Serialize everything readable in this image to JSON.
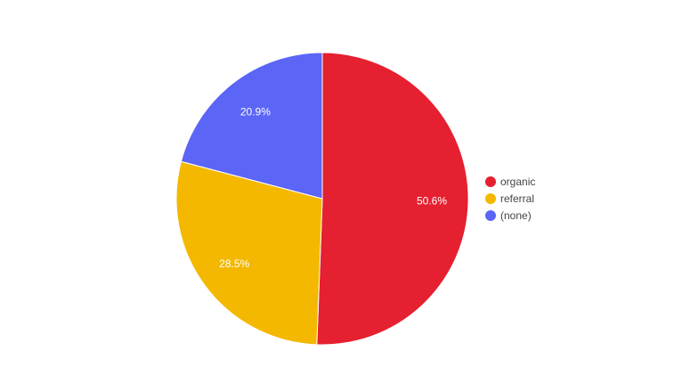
{
  "chart_data": {
    "type": "pie",
    "title": "",
    "legend_position": "right",
    "slices": [
      {
        "label": "organic",
        "value": 50.6,
        "display": "50.6%",
        "color": "#e52030"
      },
      {
        "label": "referral",
        "value": 28.5,
        "display": "28.5%",
        "color": "#f4b800"
      },
      {
        "label": "(none)",
        "value": 20.9,
        "display": "20.9%",
        "color": "#5b65f6"
      }
    ]
  }
}
